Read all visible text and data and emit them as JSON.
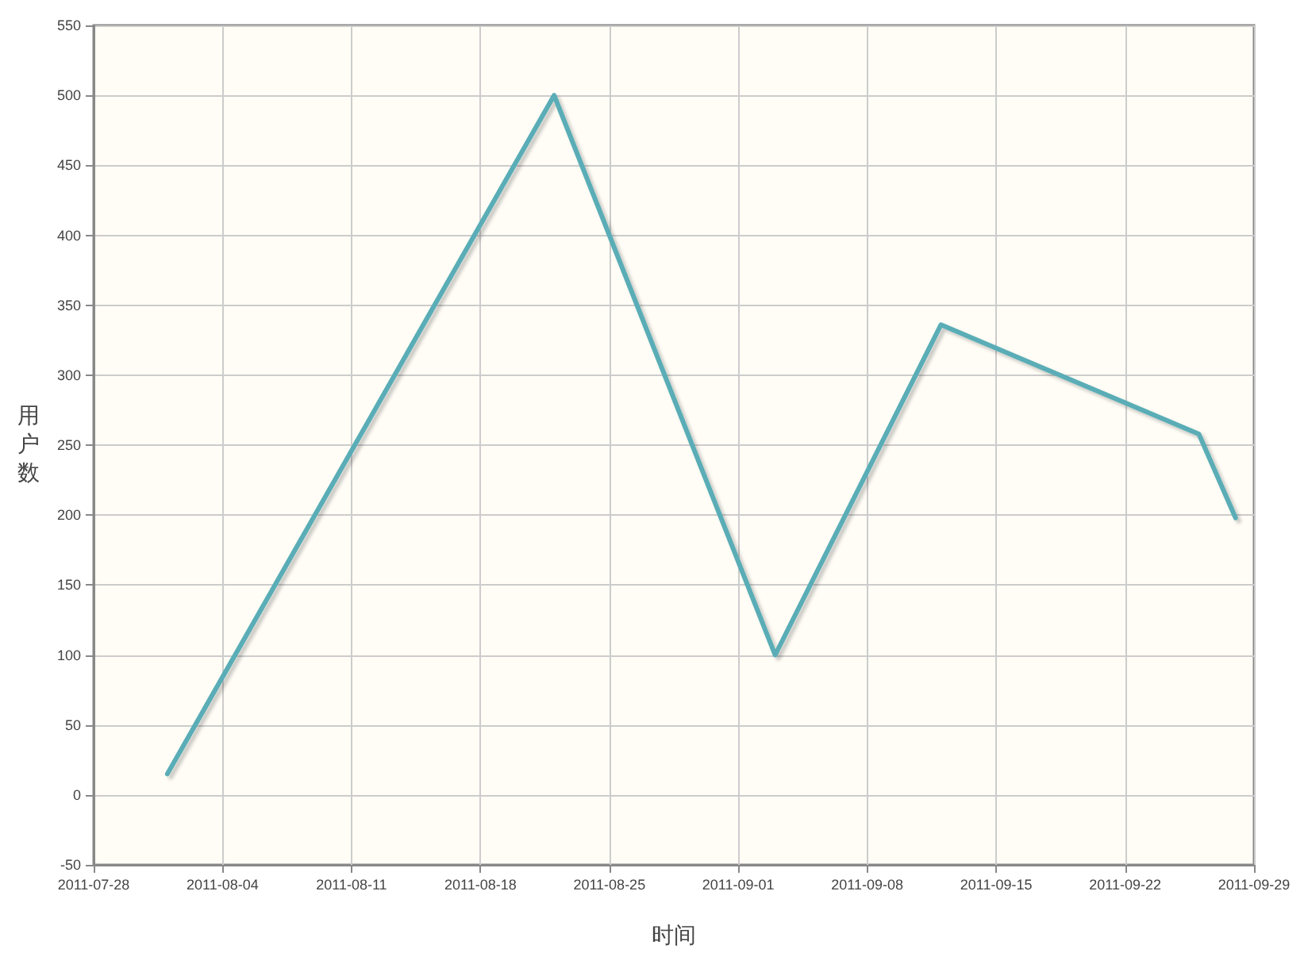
{
  "chart_data": {
    "type": "line",
    "xlabel": "时间",
    "ylabel": "用户数",
    "x": [
      "2011-08-01",
      "2011-08-22",
      "2011-09-03",
      "2011-09-12",
      "2011-09-26",
      "2011-09-28"
    ],
    "series": [
      {
        "color": "#5aadb6",
        "values": [
          15,
          500,
          100,
          336,
          258,
          198
        ]
      }
    ],
    "xlim": [
      "2011-07-28",
      "2011-09-29"
    ],
    "xticks": [
      "2011-07-28",
      "2011-08-04",
      "2011-08-11",
      "2011-08-18",
      "2011-08-25",
      "2011-09-01",
      "2011-09-08",
      "2011-09-15",
      "2011-09-22",
      "2011-09-29"
    ],
    "ylim": [
      -50,
      550
    ],
    "yticks": [
      -50,
      0,
      50,
      100,
      150,
      200,
      250,
      300,
      350,
      400,
      450,
      500,
      550
    ],
    "grid": true,
    "marker": "none",
    "line_style": "solid"
  }
}
